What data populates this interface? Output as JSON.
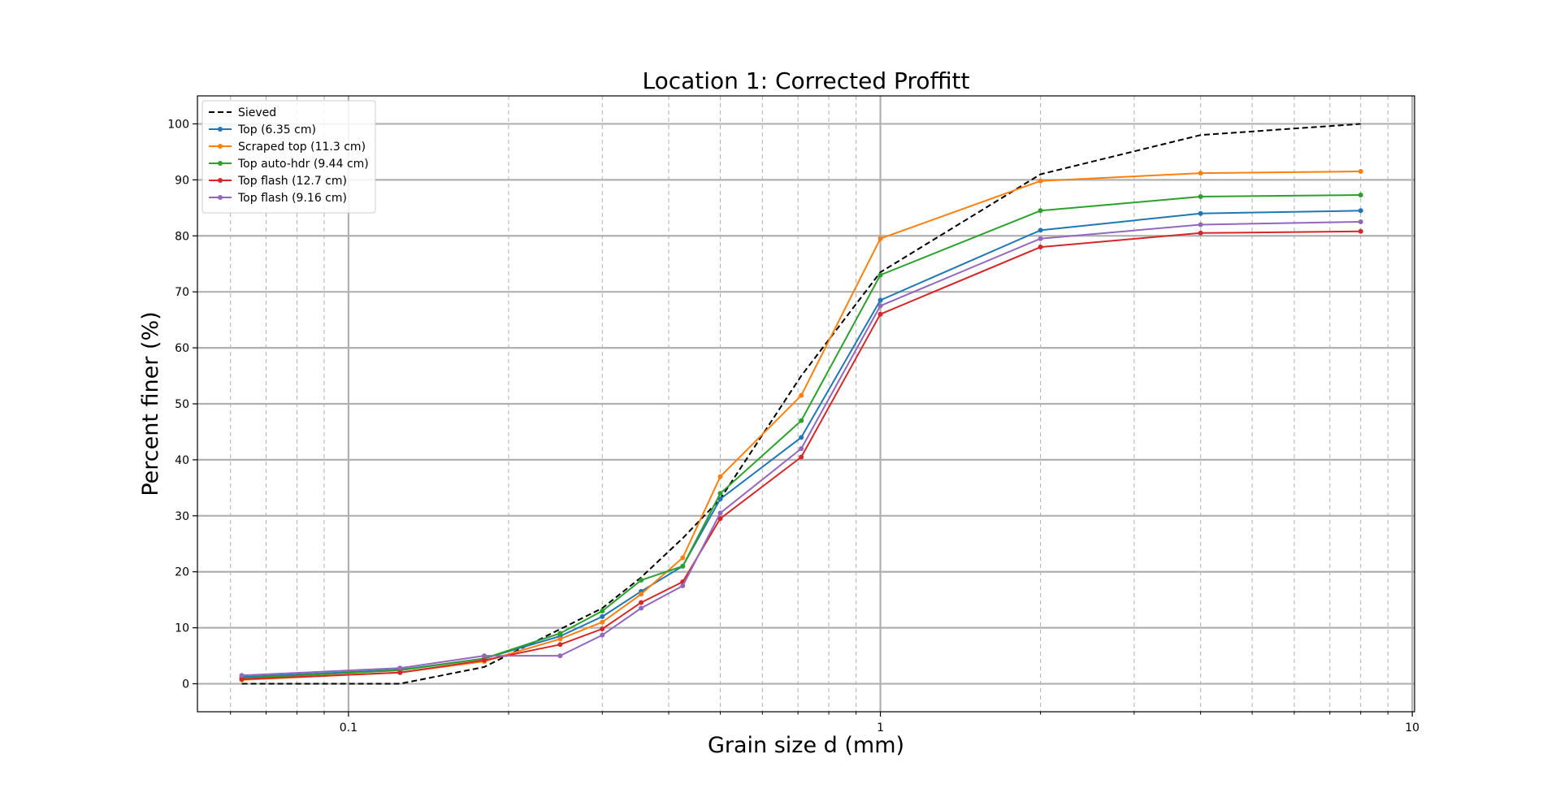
{
  "chart_data": {
    "type": "line",
    "title": "Location 1: Corrected Proffitt",
    "xlabel": "Grain size d (mm)",
    "ylabel": "Percent finer (%)",
    "xscale": "log",
    "xlim": [
      0.052,
      10.1
    ],
    "ylim": [
      -5,
      105
    ],
    "grid": "on (major solid, minor dashed)",
    "legend_position": "upper-left",
    "x_tick_labels": [
      "0.1",
      "1",
      "10"
    ],
    "y_tick_labels": [
      "0",
      "10",
      "20",
      "30",
      "40",
      "50",
      "60",
      "70",
      "80",
      "90",
      "100"
    ],
    "series": [
      {
        "name": "Sieved",
        "color": "#000000",
        "style": "dashed",
        "x": [
          0.063,
          0.125,
          0.18,
          0.3,
          0.355,
          0.425,
          0.5,
          0.71,
          1.0,
          2.0,
          4.0,
          8.0
        ],
        "y": [
          0,
          0,
          3,
          13.5,
          19,
          26,
          33,
          55,
          73.5,
          91,
          98,
          100
        ]
      },
      {
        "name": "Top (6.35 cm)",
        "color": "#1f77b4",
        "style": "solid",
        "x": [
          0.063,
          0.125,
          0.18,
          0.25,
          0.3,
          0.355,
          0.425,
          0.5,
          0.71,
          1.0,
          2.0,
          4.0,
          8.0
        ],
        "y": [
          1.2,
          2.5,
          4.5,
          8.5,
          12,
          16.5,
          21,
          33,
          44,
          68.5,
          81,
          84,
          84.5
        ]
      },
      {
        "name": "Scraped top (11.3 cm)",
        "color": "#ff7f0e",
        "style": "solid",
        "x": [
          0.063,
          0.125,
          0.18,
          0.25,
          0.3,
          0.355,
          0.425,
          0.5,
          0.71,
          1.0,
          2.0,
          4.0,
          8.0
        ],
        "y": [
          0.7,
          2.0,
          4.0,
          8.0,
          11,
          16,
          22.5,
          37,
          51.5,
          79.5,
          89.8,
          91.2,
          91.5
        ]
      },
      {
        "name": "Top auto-hdr (9.44 cm)",
        "color": "#2ca02c",
        "style": "solid",
        "x": [
          0.063,
          0.125,
          0.18,
          0.25,
          0.3,
          0.355,
          0.425,
          0.5,
          0.71,
          1.0,
          2.0,
          4.0,
          8.0
        ],
        "y": [
          1.0,
          2.4,
          4.5,
          9.0,
          13,
          18.5,
          21,
          34,
          47,
          73,
          84.5,
          87,
          87.3
        ]
      },
      {
        "name": "Top flash (12.7 cm)",
        "color": "#d62728",
        "style": "solid",
        "x": [
          0.063,
          0.125,
          0.18,
          0.25,
          0.3,
          0.355,
          0.425,
          0.5,
          0.71,
          1.0,
          2.0,
          4.0,
          8.0
        ],
        "y": [
          0.8,
          2.0,
          4.2,
          7.0,
          9.8,
          14.5,
          18.2,
          29.5,
          40.5,
          66,
          78,
          80.5,
          80.8
        ]
      },
      {
        "name": "Top flash (9.16 cm)",
        "color": "#9467bd",
        "style": "solid",
        "x": [
          0.063,
          0.125,
          0.18,
          0.25,
          0.3,
          0.355,
          0.425,
          0.5,
          0.71,
          1.0,
          2.0,
          4.0,
          8.0
        ],
        "y": [
          1.5,
          2.8,
          5.0,
          5.0,
          8.7,
          13.5,
          17.5,
          30.5,
          42,
          67.5,
          79.5,
          82,
          82.5
        ]
      }
    ]
  }
}
